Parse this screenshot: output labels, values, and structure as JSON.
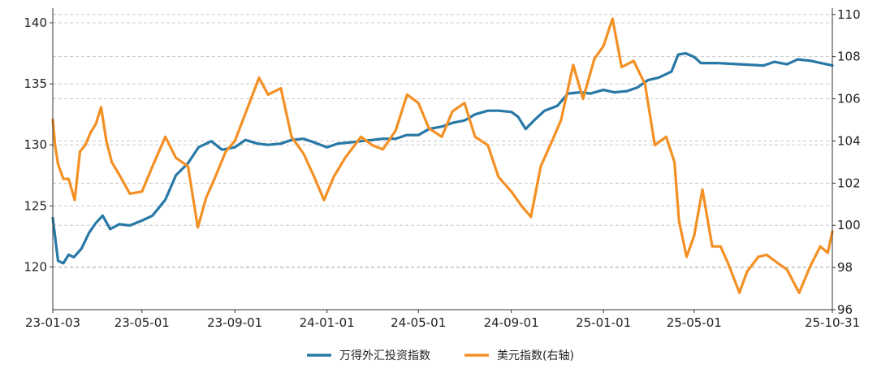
{
  "chart_data": {
    "type": "line",
    "title": "",
    "xlabel": "",
    "ylabel": "",
    "y2label": "",
    "x_ticks": [
      "23-01-03",
      "23-05-01",
      "23-09-01",
      "24-01-01",
      "24-05-01",
      "24-09-01",
      "25-01-01",
      "25-05-01",
      "25-10-31"
    ],
    "ylim": [
      116.5,
      141.2
    ],
    "y_ticks": [
      120,
      125,
      130,
      135,
      140
    ],
    "y2lim": [
      96,
      110.3
    ],
    "y2_ticks": [
      96,
      98,
      100,
      102,
      104,
      106,
      108,
      110
    ],
    "grid": "horizontal-dashed",
    "legend_position": "bottom-center",
    "series": [
      {
        "name": "万得外汇投资指数",
        "axis": "left",
        "color": "#2878a6",
        "points": [
          [
            "23-01-03",
            124.0
          ],
          [
            "23-01-10",
            120.5
          ],
          [
            "23-01-17",
            120.3
          ],
          [
            "23-01-24",
            121.0
          ],
          [
            "23-01-31",
            120.8
          ],
          [
            "23-02-10",
            121.5
          ],
          [
            "23-02-20",
            122.8
          ],
          [
            "23-03-01",
            123.6
          ],
          [
            "23-03-10",
            124.2
          ],
          [
            "23-03-20",
            123.1
          ],
          [
            "23-04-01",
            123.5
          ],
          [
            "23-04-15",
            123.4
          ],
          [
            "23-05-01",
            123.8
          ],
          [
            "23-05-15",
            124.2
          ],
          [
            "23-06-01",
            125.5
          ],
          [
            "23-06-15",
            127.5
          ],
          [
            "23-07-01",
            128.5
          ],
          [
            "23-07-15",
            129.8
          ],
          [
            "23-08-01",
            130.3
          ],
          [
            "23-08-15",
            129.6
          ],
          [
            "23-09-01",
            129.8
          ],
          [
            "23-09-15",
            130.4
          ],
          [
            "23-10-01",
            130.1
          ],
          [
            "23-10-15",
            130.0
          ],
          [
            "23-11-01",
            130.1
          ],
          [
            "23-11-15",
            130.4
          ],
          [
            "23-12-01",
            130.5
          ],
          [
            "23-12-15",
            130.2
          ],
          [
            "24-01-01",
            129.8
          ],
          [
            "24-01-15",
            130.1
          ],
          [
            "24-02-01",
            130.2
          ],
          [
            "24-02-15",
            130.3
          ],
          [
            "24-03-01",
            130.4
          ],
          [
            "24-03-15",
            130.5
          ],
          [
            "24-04-01",
            130.5
          ],
          [
            "24-04-15",
            130.8
          ],
          [
            "24-05-01",
            130.8
          ],
          [
            "24-05-15",
            131.3
          ],
          [
            "24-06-01",
            131.5
          ],
          [
            "24-06-15",
            131.8
          ],
          [
            "24-07-01",
            132.0
          ],
          [
            "24-07-15",
            132.5
          ],
          [
            "24-08-01",
            132.8
          ],
          [
            "24-08-15",
            132.8
          ],
          [
            "24-09-01",
            132.7
          ],
          [
            "24-09-10",
            132.3
          ],
          [
            "24-09-20",
            131.3
          ],
          [
            "24-10-01",
            132.0
          ],
          [
            "24-10-15",
            132.8
          ],
          [
            "24-11-01",
            133.2
          ],
          [
            "24-11-15",
            134.2
          ],
          [
            "24-12-01",
            134.3
          ],
          [
            "24-12-15",
            134.2
          ],
          [
            "25-01-01",
            134.5
          ],
          [
            "25-01-15",
            134.3
          ],
          [
            "25-02-01",
            134.4
          ],
          [
            "25-02-15",
            134.7
          ],
          [
            "25-03-01",
            135.3
          ],
          [
            "25-03-15",
            135.5
          ],
          [
            "25-04-01",
            136.0
          ],
          [
            "25-04-10",
            137.4
          ],
          [
            "25-04-20",
            137.5
          ],
          [
            "25-05-01",
            137.2
          ],
          [
            "25-05-10",
            136.7
          ],
          [
            "25-06-01",
            136.7
          ],
          [
            "25-07-01",
            136.6
          ],
          [
            "25-08-01",
            136.5
          ],
          [
            "25-08-15",
            136.8
          ],
          [
            "25-09-01",
            136.6
          ],
          [
            "25-09-15",
            137.0
          ],
          [
            "25-10-01",
            136.9
          ],
          [
            "25-10-31",
            136.5
          ]
        ]
      },
      {
        "name": "美元指数(右轴)",
        "axis": "right",
        "color": "#f39024",
        "points": [
          [
            "23-01-03",
            105.0
          ],
          [
            "23-01-06",
            103.8
          ],
          [
            "23-01-10",
            102.9
          ],
          [
            "23-01-17",
            102.2
          ],
          [
            "23-01-24",
            102.2
          ],
          [
            "23-02-01",
            101.2
          ],
          [
            "23-02-08",
            103.5
          ],
          [
            "23-02-15",
            103.8
          ],
          [
            "23-02-22",
            104.4
          ],
          [
            "23-03-01",
            104.8
          ],
          [
            "23-03-08",
            105.6
          ],
          [
            "23-03-15",
            104.0
          ],
          [
            "23-03-22",
            103.0
          ],
          [
            "23-04-01",
            102.4
          ],
          [
            "23-04-15",
            101.5
          ],
          [
            "23-05-01",
            101.6
          ],
          [
            "23-05-15",
            102.8
          ],
          [
            "23-06-01",
            104.2
          ],
          [
            "23-06-15",
            103.2
          ],
          [
            "23-07-01",
            102.8
          ],
          [
            "23-07-14",
            99.9
          ],
          [
            "23-07-25",
            101.3
          ],
          [
            "23-08-05",
            102.2
          ],
          [
            "23-08-20",
            103.5
          ],
          [
            "23-09-01",
            104.0
          ],
          [
            "23-09-15",
            105.3
          ],
          [
            "23-10-03",
            107.0
          ],
          [
            "23-10-15",
            106.2
          ],
          [
            "23-11-01",
            106.5
          ],
          [
            "23-11-15",
            104.2
          ],
          [
            "23-12-01",
            103.4
          ],
          [
            "23-12-15",
            102.3
          ],
          [
            "23-12-28",
            101.2
          ],
          [
            "24-01-10",
            102.3
          ],
          [
            "24-01-25",
            103.2
          ],
          [
            "24-02-15",
            104.2
          ],
          [
            "24-03-01",
            103.8
          ],
          [
            "24-03-15",
            103.6
          ],
          [
            "24-04-01",
            104.5
          ],
          [
            "24-04-16",
            106.2
          ],
          [
            "24-05-01",
            105.8
          ],
          [
            "24-05-15",
            104.6
          ],
          [
            "24-06-01",
            104.2
          ],
          [
            "24-06-15",
            105.4
          ],
          [
            "24-07-01",
            105.8
          ],
          [
            "24-07-15",
            104.2
          ],
          [
            "24-08-01",
            103.8
          ],
          [
            "24-08-15",
            102.3
          ],
          [
            "24-09-01",
            101.6
          ],
          [
            "24-09-15",
            100.9
          ],
          [
            "24-09-27",
            100.4
          ],
          [
            "24-10-10",
            102.8
          ],
          [
            "24-10-25",
            104.0
          ],
          [
            "24-11-06",
            105.0
          ],
          [
            "24-11-22",
            107.6
          ],
          [
            "24-12-05",
            106.0
          ],
          [
            "24-12-20",
            107.9
          ],
          [
            "25-01-01",
            108.5
          ],
          [
            "25-01-13",
            109.8
          ],
          [
            "25-01-25",
            107.5
          ],
          [
            "25-02-10",
            107.8
          ],
          [
            "25-02-25",
            106.7
          ],
          [
            "25-03-10",
            103.8
          ],
          [
            "25-03-25",
            104.2
          ],
          [
            "25-04-05",
            103.0
          ],
          [
            "25-04-11",
            100.2
          ],
          [
            "25-04-21",
            98.5
          ],
          [
            "25-05-01",
            99.5
          ],
          [
            "25-05-12",
            101.7
          ],
          [
            "25-05-25",
            99.0
          ],
          [
            "25-06-05",
            99.0
          ],
          [
            "25-06-15",
            98.2
          ],
          [
            "25-06-30",
            96.8
          ],
          [
            "25-07-10",
            97.8
          ],
          [
            "25-07-25",
            98.5
          ],
          [
            "25-08-05",
            98.6
          ],
          [
            "25-08-20",
            98.2
          ],
          [
            "25-09-01",
            97.9
          ],
          [
            "25-09-17",
            96.8
          ],
          [
            "25-10-01",
            98.0
          ],
          [
            "25-10-15",
            99.0
          ],
          [
            "25-10-25",
            98.7
          ],
          [
            "25-10-31",
            99.7
          ]
        ]
      }
    ]
  }
}
